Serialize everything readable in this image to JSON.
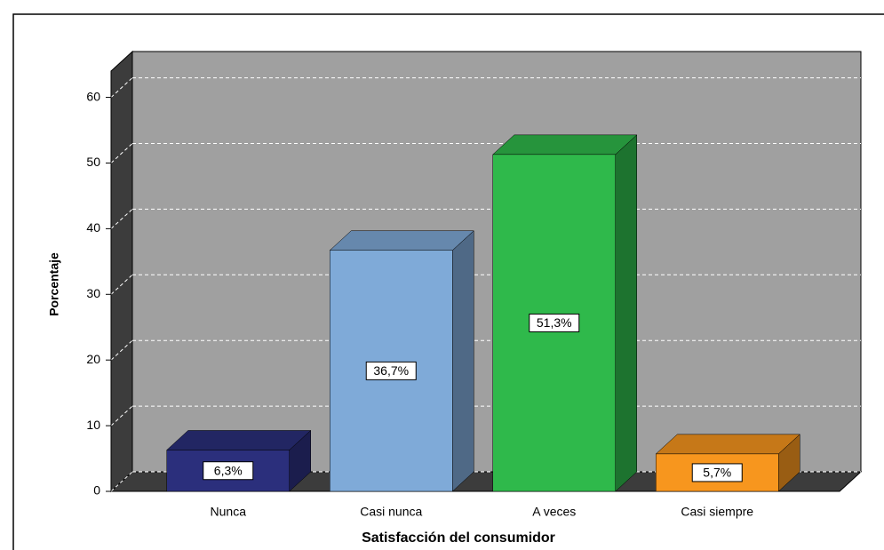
{
  "chart_data": {
    "type": "bar3d",
    "x_label": "Satisfacción del consumidor",
    "y_label": "Porcentaje",
    "categories": [
      "Nunca",
      "Casi nunca",
      "A veces",
      "Casi siempre"
    ],
    "values": [
      6.3,
      36.7,
      51.3,
      5.7
    ],
    "value_labels": [
      "6,3%",
      "36,7%",
      "51,3%",
      "5,7%"
    ],
    "colors": [
      "#2b2f7c",
      "#7faad8",
      "#2fb94b",
      "#f7961e"
    ],
    "ylim": [
      0,
      64
    ],
    "yticks": [
      0,
      10,
      20,
      30,
      40,
      50,
      60
    ],
    "grid": true
  }
}
